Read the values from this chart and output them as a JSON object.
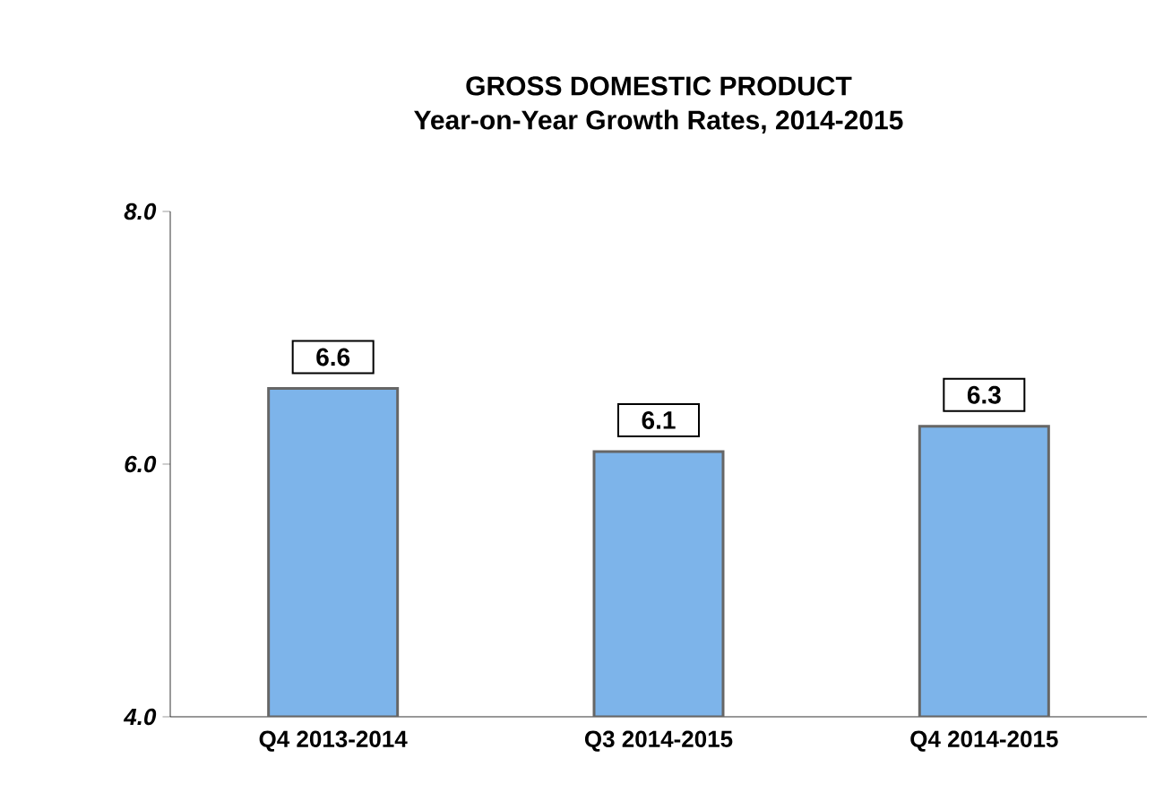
{
  "chart_data": {
    "type": "bar",
    "title": "GROSS DOMESTIC PRODUCT",
    "subtitle": "Year-on-Year Growth Rates, 2014-2015",
    "categories": [
      "Q4 2013-2014",
      "Q3 2014-2015",
      "Q4 2014-2015"
    ],
    "values": [
      6.6,
      6.1,
      6.3
    ],
    "color": "#7db4ea",
    "ylim": [
      4,
      8
    ],
    "yticks": [
      {
        "value": 4,
        "label": "4.0"
      },
      {
        "value": 6,
        "label": "6.0"
      },
      {
        "value": 8,
        "label": "8.0"
      }
    ],
    "data_labels": true,
    "grid": false
  }
}
